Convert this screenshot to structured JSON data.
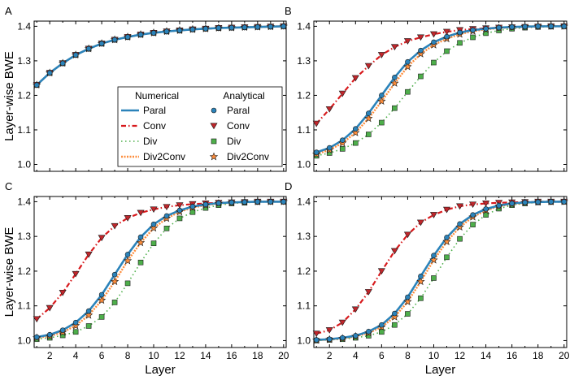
{
  "chart_data": [
    {
      "type": "line",
      "panel_label": "A",
      "ylabel": "Layer-wise BWE",
      "xlabel": "",
      "xlim": [
        0.8,
        20.2
      ],
      "ylim": [
        0.98,
        1.415
      ],
      "x": [
        1,
        2,
        3,
        4,
        5,
        6,
        7,
        8,
        9,
        10,
        11,
        12,
        13,
        14,
        15,
        16,
        17,
        18,
        19,
        20
      ],
      "series": [
        {
          "name": "Paral",
          "values": [
            1.23,
            1.265,
            1.293,
            1.317,
            1.335,
            1.35,
            1.361,
            1.369,
            1.376,
            1.381,
            1.385,
            1.388,
            1.391,
            1.393,
            1.395,
            1.396,
            1.397,
            1.398,
            1.399,
            1.4
          ]
        },
        {
          "name": "Conv",
          "values": [
            1.23,
            1.265,
            1.293,
            1.317,
            1.335,
            1.35,
            1.361,
            1.369,
            1.376,
            1.381,
            1.385,
            1.388,
            1.391,
            1.393,
            1.395,
            1.396,
            1.397,
            1.398,
            1.399,
            1.4
          ]
        },
        {
          "name": "Div",
          "values": [
            1.23,
            1.265,
            1.293,
            1.317,
            1.335,
            1.35,
            1.361,
            1.369,
            1.376,
            1.381,
            1.385,
            1.388,
            1.391,
            1.393,
            1.395,
            1.396,
            1.397,
            1.398,
            1.399,
            1.4
          ]
        },
        {
          "name": "Div2Conv",
          "values": [
            1.23,
            1.265,
            1.293,
            1.317,
            1.335,
            1.35,
            1.361,
            1.369,
            1.376,
            1.381,
            1.385,
            1.388,
            1.391,
            1.393,
            1.395,
            1.396,
            1.397,
            1.398,
            1.399,
            1.4
          ]
        }
      ]
    },
    {
      "type": "line",
      "panel_label": "B",
      "ylabel": "",
      "xlabel": "",
      "xlim": [
        0.8,
        20.2
      ],
      "ylim": [
        0.98,
        1.415
      ],
      "x": [
        1,
        2,
        3,
        4,
        5,
        6,
        7,
        8,
        9,
        10,
        11,
        12,
        13,
        14,
        15,
        16,
        17,
        18,
        19,
        20
      ],
      "series": [
        {
          "name": "Paral",
          "values": [
            1.035,
            1.048,
            1.07,
            1.103,
            1.148,
            1.2,
            1.252,
            1.297,
            1.33,
            1.354,
            1.37,
            1.382,
            1.389,
            1.393,
            1.396,
            1.398,
            1.399,
            1.4,
            1.4,
            1.4
          ]
        },
        {
          "name": "Conv",
          "values": [
            1.118,
            1.16,
            1.205,
            1.25,
            1.285,
            1.317,
            1.34,
            1.357,
            1.368,
            1.377,
            1.384,
            1.389,
            1.392,
            1.394,
            1.396,
            1.397,
            1.398,
            1.399,
            1.4,
            1.4
          ]
        },
        {
          "name": "Div",
          "values": [
            1.025,
            1.033,
            1.045,
            1.062,
            1.087,
            1.121,
            1.163,
            1.21,
            1.255,
            1.295,
            1.328,
            1.352,
            1.368,
            1.38,
            1.388,
            1.393,
            1.396,
            1.398,
            1.399,
            1.4
          ]
        },
        {
          "name": "Div2Conv",
          "values": [
            1.03,
            1.042,
            1.062,
            1.092,
            1.133,
            1.183,
            1.235,
            1.283,
            1.32,
            1.346,
            1.364,
            1.377,
            1.386,
            1.391,
            1.395,
            1.397,
            1.399,
            1.4,
            1.4,
            1.4
          ]
        }
      ]
    },
    {
      "type": "line",
      "panel_label": "C",
      "ylabel": "Layer-wise BWE",
      "xlabel": "Layer",
      "xlim": [
        0.8,
        20.2
      ],
      "ylim": [
        0.98,
        1.415
      ],
      "x": [
        1,
        2,
        3,
        4,
        5,
        6,
        7,
        8,
        9,
        10,
        11,
        12,
        13,
        14,
        15,
        16,
        17,
        18,
        19,
        20
      ],
      "series": [
        {
          "name": "Paral",
          "values": [
            1.01,
            1.017,
            1.03,
            1.052,
            1.085,
            1.132,
            1.19,
            1.248,
            1.298,
            1.335,
            1.359,
            1.375,
            1.386,
            1.392,
            1.396,
            1.398,
            1.399,
            1.4,
            1.4,
            1.4
          ]
        },
        {
          "name": "Conv",
          "values": [
            1.062,
            1.094,
            1.138,
            1.192,
            1.248,
            1.296,
            1.33,
            1.353,
            1.368,
            1.378,
            1.385,
            1.39,
            1.393,
            1.395,
            1.397,
            1.398,
            1.399,
            1.4,
            1.4,
            1.4
          ]
        },
        {
          "name": "Div",
          "values": [
            1.004,
            1.008,
            1.015,
            1.025,
            1.042,
            1.068,
            1.11,
            1.165,
            1.225,
            1.28,
            1.323,
            1.352,
            1.37,
            1.382,
            1.39,
            1.395,
            1.397,
            1.399,
            1.4,
            1.4
          ]
        },
        {
          "name": "Div2Conv",
          "values": [
            1.008,
            1.013,
            1.024,
            1.043,
            1.073,
            1.116,
            1.17,
            1.23,
            1.282,
            1.324,
            1.352,
            1.371,
            1.383,
            1.39,
            1.395,
            1.397,
            1.399,
            1.4,
            1.4,
            1.4
          ]
        }
      ]
    },
    {
      "type": "line",
      "panel_label": "D",
      "ylabel": "",
      "xlabel": "Layer",
      "xlim": [
        0.8,
        20.2
      ],
      "ylim": [
        0.98,
        1.415
      ],
      "x": [
        1,
        2,
        3,
        4,
        5,
        6,
        7,
        8,
        9,
        10,
        11,
        12,
        13,
        14,
        15,
        16,
        17,
        18,
        19,
        20
      ],
      "series": [
        {
          "name": "Paral",
          "values": [
            1.002,
            1.004,
            1.008,
            1.014,
            1.026,
            1.045,
            1.078,
            1.125,
            1.185,
            1.245,
            1.297,
            1.336,
            1.362,
            1.379,
            1.389,
            1.395,
            1.398,
            1.399,
            1.4,
            1.4
          ]
        },
        {
          "name": "Conv",
          "values": [
            1.02,
            1.03,
            1.052,
            1.09,
            1.14,
            1.2,
            1.258,
            1.305,
            1.34,
            1.362,
            1.377,
            1.387,
            1.392,
            1.395,
            1.397,
            1.398,
            1.399,
            1.4,
            1.4,
            1.4
          ]
        },
        {
          "name": "Div",
          "values": [
            1.0,
            1.002,
            1.004,
            1.008,
            1.014,
            1.025,
            1.045,
            1.077,
            1.122,
            1.18,
            1.24,
            1.293,
            1.334,
            1.362,
            1.38,
            1.39,
            1.395,
            1.398,
            1.399,
            1.4
          ]
        },
        {
          "name": "Div2Conv",
          "values": [
            1.001,
            1.003,
            1.006,
            1.012,
            1.022,
            1.039,
            1.068,
            1.112,
            1.17,
            1.232,
            1.285,
            1.327,
            1.356,
            1.375,
            1.387,
            1.393,
            1.397,
            1.399,
            1.4,
            1.4
          ]
        }
      ]
    }
  ],
  "axes": {
    "yticks": [
      1.0,
      1.1,
      1.2,
      1.3,
      1.4
    ],
    "ytick_labels": [
      "1.0",
      "1.1",
      "1.2",
      "1.3",
      "1.4"
    ],
    "xticks": [
      2,
      4,
      6,
      8,
      10,
      12,
      14,
      16,
      18,
      20
    ],
    "xtick_labels": [
      "2",
      "4",
      "6",
      "8",
      "10",
      "12",
      "14",
      "16",
      "18",
      "20"
    ]
  },
  "legend": {
    "placement": "panel-A-lower-right",
    "numerical_title": "Numerical",
    "analytical_title": "Analytical",
    "entries": [
      "Paral",
      "Conv",
      "Div",
      "Div2Conv"
    ]
  },
  "styles": {
    "Paral": {
      "color": "#2b83ba",
      "marker": "circle",
      "marker_fill": "#2b83ba"
    },
    "Conv": {
      "color": "#d7191c",
      "marker": "triangle-down",
      "marker_fill": "#c0262b"
    },
    "Div": {
      "color": "#4daf4a",
      "marker": "square",
      "marker_fill": "#4daf4a"
    },
    "Div2Conv": {
      "color": "#fd8d3c",
      "marker": "star",
      "marker_fill": "#fd8d3c"
    }
  }
}
